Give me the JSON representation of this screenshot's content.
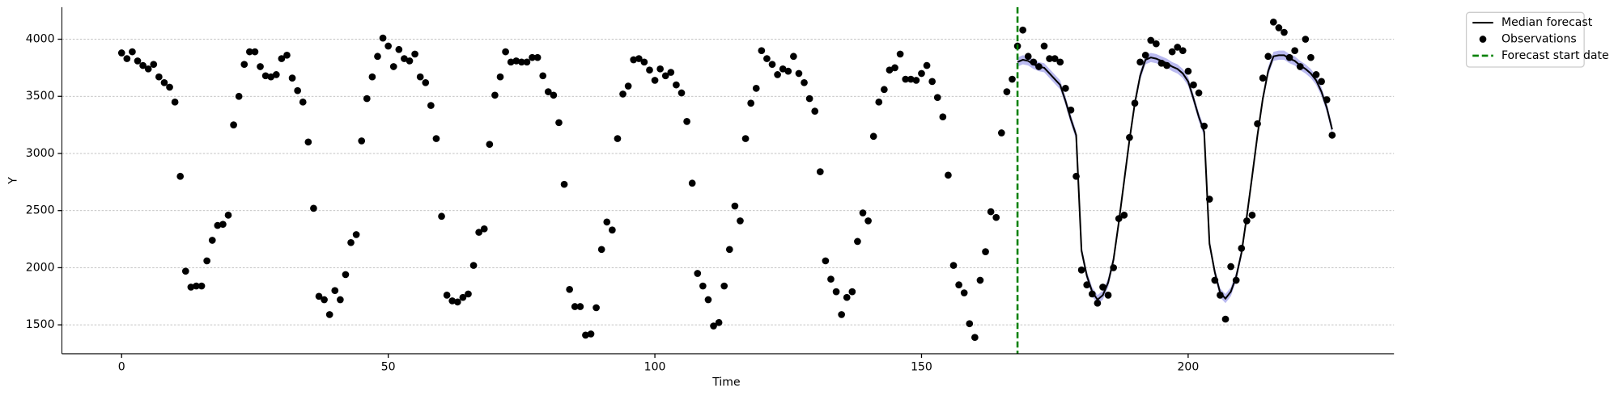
{
  "chart_data": {
    "type": "scatter",
    "xlabel": "Time",
    "ylabel": "Y",
    "xlim": [
      -11.2,
      238.6
    ],
    "ylim": [
      1247,
      4280
    ],
    "xticks": [
      0,
      50,
      100,
      150,
      200
    ],
    "yticks": [
      1500,
      2000,
      2500,
      3000,
      3500,
      4000
    ],
    "grid": "y",
    "legend": "upper right outside",
    "series": [
      {
        "name": "Median forecast",
        "type": "line",
        "color": "#000000",
        "band_color": "#6666dd",
        "x": [
          168,
          169,
          170,
          171,
          172,
          173,
          174,
          175,
          176,
          177,
          178,
          179,
          180,
          181,
          182,
          183,
          184,
          185,
          186,
          187,
          188,
          189,
          190,
          191,
          192,
          193,
          194,
          195,
          196,
          197,
          198,
          199,
          200,
          201,
          202,
          203,
          204,
          205,
          206,
          207,
          208,
          209,
          210,
          211,
          212,
          213,
          214,
          215,
          216,
          217,
          218,
          219,
          220,
          221,
          222,
          223,
          224,
          225,
          226,
          227
        ],
        "values": [
          3800,
          3820,
          3810,
          3780,
          3760,
          3750,
          3700,
          3650,
          3600,
          3460,
          3300,
          3160,
          2150,
          1930,
          1790,
          1720,
          1760,
          1870,
          2070,
          2400,
          2760,
          3120,
          3440,
          3680,
          3820,
          3840,
          3830,
          3810,
          3790,
          3760,
          3740,
          3700,
          3630,
          3480,
          3320,
          3190,
          2210,
          1960,
          1780,
          1730,
          1790,
          1920,
          2130,
          2450,
          2800,
          3160,
          3480,
          3720,
          3850,
          3860,
          3860,
          3830,
          3810,
          3770,
          3740,
          3700,
          3640,
          3540,
          3400,
          3210
        ],
        "upper": [
          3840,
          3860,
          3850,
          3820,
          3800,
          3790,
          3740,
          3690,
          3640,
          3500,
          3340,
          3200,
          2190,
          1970,
          1830,
          1760,
          1800,
          1910,
          2110,
          2440,
          2800,
          3160,
          3480,
          3720,
          3860,
          3880,
          3870,
          3850,
          3830,
          3800,
          3780,
          3740,
          3670,
          3520,
          3360,
          3230,
          2250,
          2000,
          1820,
          1770,
          1830,
          1960,
          2170,
          2490,
          2840,
          3200,
          3520,
          3760,
          3890,
          3900,
          3900,
          3870,
          3850,
          3810,
          3780,
          3740,
          3680,
          3580,
          3440,
          3250
        ],
        "lower": [
          3760,
          3780,
          3770,
          3740,
          3720,
          3710,
          3660,
          3610,
          3560,
          3420,
          3260,
          3120,
          2110,
          1890,
          1750,
          1680,
          1720,
          1830,
          2030,
          2360,
          2720,
          3080,
          3400,
          3640,
          3780,
          3800,
          3790,
          3770,
          3750,
          3720,
          3700,
          3660,
          3590,
          3440,
          3280,
          3150,
          2170,
          1920,
          1740,
          1690,
          1750,
          1880,
          2090,
          2410,
          2760,
          3120,
          3440,
          3680,
          3810,
          3820,
          3820,
          3790,
          3770,
          3730,
          3700,
          3660,
          3600,
          3500,
          3360,
          3170
        ]
      },
      {
        "name": "Observations",
        "type": "scatter",
        "color": "#000000",
        "x": [
          0,
          1,
          2,
          3,
          4,
          5,
          6,
          7,
          8,
          9,
          10,
          11,
          12,
          13,
          14,
          15,
          16,
          17,
          18,
          19,
          20,
          21,
          22,
          23,
          24,
          25,
          26,
          27,
          28,
          29,
          30,
          31,
          32,
          33,
          34,
          35,
          36,
          37,
          38,
          39,
          40,
          41,
          42,
          43,
          44,
          45,
          46,
          47,
          48,
          49,
          50,
          51,
          52,
          53,
          54,
          55,
          56,
          57,
          58,
          59,
          60,
          61,
          62,
          63,
          64,
          65,
          66,
          67,
          68,
          69,
          70,
          71,
          72,
          73,
          74,
          75,
          76,
          77,
          78,
          79,
          80,
          81,
          82,
          83,
          84,
          85,
          86,
          87,
          88,
          89,
          90,
          91,
          92,
          93,
          94,
          95,
          96,
          97,
          98,
          99,
          100,
          101,
          102,
          103,
          104,
          105,
          106,
          107,
          108,
          109,
          110,
          111,
          112,
          113,
          114,
          115,
          116,
          117,
          118,
          119,
          120,
          121,
          122,
          123,
          124,
          125,
          126,
          127,
          128,
          129,
          130,
          131,
          132,
          133,
          134,
          135,
          136,
          137,
          138,
          139,
          140,
          141,
          142,
          143,
          144,
          145,
          146,
          147,
          148,
          149,
          150,
          151,
          152,
          153,
          154,
          155,
          156,
          157,
          158,
          159,
          160,
          161,
          162,
          163,
          164,
          165,
          166,
          167,
          168,
          169,
          170,
          171,
          172,
          173,
          174,
          175,
          176,
          177,
          178,
          179,
          180,
          181,
          182,
          183,
          184,
          185,
          186,
          187,
          188,
          189,
          190,
          191,
          192,
          193,
          194,
          195,
          196,
          197,
          198,
          199,
          200,
          201,
          202,
          203,
          204,
          205,
          206,
          207,
          208,
          209,
          210,
          211,
          212,
          213,
          214,
          215,
          216,
          217,
          218,
          219,
          220,
          221,
          222,
          223,
          224,
          225,
          226,
          227
        ],
        "values": [
          3880,
          3830,
          3890,
          3810,
          3770,
          3740,
          3780,
          3670,
          3620,
          3580,
          3450,
          2800,
          1970,
          1830,
          1840,
          1840,
          2060,
          2240,
          2370,
          2380,
          2460,
          3250,
          3500,
          3780,
          3890,
          3890,
          3760,
          3680,
          3670,
          3690,
          3830,
          3860,
          3660,
          3550,
          3450,
          3100,
          2520,
          1750,
          1720,
          1590,
          1800,
          1720,
          1940,
          2220,
          2290,
          3110,
          3480,
          3670,
          3850,
          4010,
          3940,
          3760,
          3910,
          3830,
          3810,
          3870,
          3670,
          3620,
          3420,
          3130,
          2450,
          1760,
          1710,
          1700,
          1740,
          1770,
          2020,
          2310,
          2340,
          3080,
          3510,
          3670,
          3890,
          3800,
          3810,
          3800,
          3800,
          3840,
          3840,
          3680,
          3540,
          3510,
          3270,
          2730,
          1810,
          1660,
          1660,
          1410,
          1420,
          1650,
          2160,
          2400,
          2330,
          3130,
          3520,
          3590,
          3820,
          3830,
          3800,
          3730,
          3640,
          3740,
          3680,
          3710,
          3600,
          3530,
          3280,
          2740,
          1950,
          1840,
          1720,
          1490,
          1520,
          1840,
          2160,
          2540,
          2410,
          3130,
          3440,
          3570,
          3900,
          3830,
          3780,
          3690,
          3740,
          3720,
          3850,
          3700,
          3620,
          3480,
          3370,
          2840,
          2060,
          1900,
          1790,
          1590,
          1740,
          1790,
          2230,
          2480,
          2410,
          3150,
          3450,
          3560,
          3730,
          3750,
          3870,
          3650,
          3650,
          3640,
          3700,
          3770,
          3630,
          3490,
          3320,
          2810,
          2020,
          1850,
          1780,
          1510,
          1390,
          1890,
          2140,
          2490,
          2440,
          3180,
          3540,
          3650,
          3940,
          4080,
          3850,
          3800,
          3760,
          3940,
          3830,
          3830,
          3800,
          3570,
          3380,
          2800,
          1980,
          1850,
          1770,
          1690,
          1830,
          1760,
          2000,
          2430,
          2460,
          3140,
          3440,
          3800,
          3860,
          3990,
          3960,
          3790,
          3770,
          3890,
          3930,
          3900,
          3720,
          3600,
          3530,
          3240,
          2600,
          1890,
          1760,
          1550,
          2010,
          1890,
          2170,
          2410,
          2460,
          3260,
          3660,
          3850,
          4150,
          4100,
          4060,
          3840,
          3900,
          3760,
          4000,
          3840,
          3690,
          3630,
          3470,
          3160
        ]
      }
    ],
    "vline": {
      "name": "Forecast start date",
      "x": 168,
      "color": "#008000",
      "style": "dashed"
    }
  }
}
